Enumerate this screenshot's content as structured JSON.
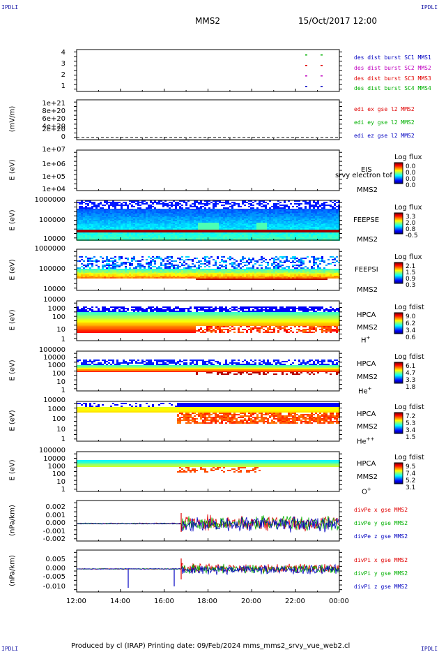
{
  "corner_label": "IPDLI",
  "header": {
    "spacecraft": "MMS2",
    "datetime": "15/Oct/2017 12:00"
  },
  "footer": {
    "text": "Produced by cl (IRAP)   Printing date: 09/Feb/2024   mms_mms2_srvy_vue_web2.cl"
  },
  "x_axis": {
    "ticks": [
      "12:00",
      "14:00",
      "16:00",
      "18:00",
      "20:00",
      "22:00",
      "00:00"
    ]
  },
  "colors": {
    "red": "#e00000",
    "green": "#00b000",
    "blue": "#0000c0",
    "magenta": "#c000c0"
  },
  "panels": [
    {
      "id": "burst",
      "ylabel": "",
      "yticks": [
        "4",
        "3",
        "2",
        "1"
      ],
      "legend": [
        {
          "text": "des dist burst SC1 MMS1",
          "color": "#0000c0"
        },
        {
          "text": "des dist burst SC2 MMS2",
          "color": "#c000c0"
        },
        {
          "text": "des dist burst SC3 MMS3",
          "color": "#e00000"
        },
        {
          "text": "des dist burst SC4 MMS4",
          "color": "#00b000"
        }
      ]
    },
    {
      "id": "edi",
      "ylabel": "(mV/m)",
      "yticks": [
        "1e+21",
        "8e+20",
        "6e+20",
        "4e+20",
        "2e+20",
        "0"
      ],
      "legend": [
        {
          "text": "edi ex gse l2 MMS2",
          "color": "#e00000"
        },
        {
          "text": "edi ey gse l2 MMS2",
          "color": "#00b000"
        },
        {
          "text": "edi ez gse l2 MMS2",
          "color": "#0000c0"
        }
      ]
    },
    {
      "id": "eis",
      "ylabel": "E (eV)",
      "yticks": [
        "1e+07",
        "1e+06",
        "1e+05",
        "1e+04"
      ],
      "side": [
        "EIS",
        "MMS2"
      ],
      "overlay": "srvy electron tof",
      "cb_title": "Log flux",
      "cb_values": [
        "0.0",
        "0.0",
        "0.0",
        "0.0"
      ]
    },
    {
      "id": "feepse",
      "ylabel": "E (eV)",
      "yticks": [
        "1000000",
        "100000",
        "10000"
      ],
      "side": [
        "FEEPSE",
        "MMS2"
      ],
      "cb_title": "Log flux",
      "cb_values": [
        "3.3",
        "2.0",
        "0.8",
        "-0.5"
      ]
    },
    {
      "id": "feepsi",
      "ylabel": "E (eV)",
      "yticks": [
        "1000000",
        "100000",
        "10000"
      ],
      "side": [
        "FEEPSI",
        "MMS2"
      ],
      "cb_title": "Log flux",
      "cb_values": [
        "2.1",
        "1.5",
        "0.9",
        "0.3"
      ]
    },
    {
      "id": "hpca-h",
      "ylabel": "E (eV)",
      "yticks": [
        "10000",
        "1000",
        "100",
        "10",
        "1"
      ],
      "side": [
        "HPCA",
        "MMS2",
        "H",
        "+"
      ],
      "cb_title": "Log fdist",
      "cb_values": [
        "9.0",
        "6.2",
        "3.4",
        "0.6"
      ]
    },
    {
      "id": "hpca-he",
      "ylabel": "E (eV)",
      "yticks": [
        "100000",
        "10000",
        "1000",
        "100",
        "10",
        "1"
      ],
      "side": [
        "HPCA",
        "MMS2",
        "He",
        "+"
      ],
      "cb_title": "Log fdist",
      "cb_values": [
        "6.1",
        "4.7",
        "3.3",
        "1.8"
      ]
    },
    {
      "id": "hpca-hepp",
      "ylabel": "E (eV)",
      "yticks": [
        "10000",
        "1000",
        "100",
        "10",
        "1"
      ],
      "side": [
        "HPCA",
        "MMS2",
        "He",
        "++"
      ],
      "cb_title": "Log fdist",
      "cb_values": [
        "7.2",
        "5.3",
        "3.4",
        "1.5"
      ]
    },
    {
      "id": "hpca-o",
      "ylabel": "E (eV)",
      "yticks": [
        "100000",
        "10000",
        "1000",
        "100",
        "10",
        "1"
      ],
      "side": [
        "HPCA",
        "MMS2",
        "O",
        "+"
      ],
      "cb_title": "Log fdist",
      "cb_values": [
        "9.5",
        "7.4",
        "5.2",
        "3.1"
      ]
    },
    {
      "id": "divpe",
      "ylabel": "(nPa/km)",
      "yticks": [
        "0.002",
        "0.001",
        "0.000",
        "-0.001",
        "-0.002"
      ],
      "legend": [
        {
          "text": "divPe x gse MMS2",
          "color": "#e00000"
        },
        {
          "text": "divPe y gse MMS2",
          "color": "#00b000"
        },
        {
          "text": "divPe z gse MMS2",
          "color": "#0000c0"
        }
      ]
    },
    {
      "id": "divpi",
      "ylabel": "(nPa/km)",
      "yticks": [
        "0.005",
        "0.000",
        "-0.005",
        "-0.010"
      ],
      "legend": [
        {
          "text": "divPi x gse MMS2",
          "color": "#e00000"
        },
        {
          "text": "divPi y gse MMS2",
          "color": "#00b000"
        },
        {
          "text": "divPi z gse MMS2",
          "color": "#0000c0"
        }
      ]
    }
  ],
  "chart_data": [
    {
      "type": "scatter",
      "title": "des dist burst",
      "ylim": [
        0.5,
        4.5
      ],
      "x": [
        "22:40",
        "23:20"
      ],
      "series": [
        {
          "name": "des dist burst SC1 MMS1",
          "y": [
            1,
            1
          ]
        },
        {
          "name": "des dist burst SC2 MMS2",
          "y": [
            2,
            2
          ]
        },
        {
          "name": "des dist burst SC3 MMS3",
          "y": [
            3,
            3
          ]
        },
        {
          "name": "des dist burst SC4 MMS4",
          "y": [
            4,
            4
          ]
        }
      ]
    },
    {
      "type": "line",
      "title": "edi",
      "ylabel": "(mV/m)",
      "ylim": [
        0,
        1e+21
      ],
      "series": [
        {
          "name": "edi ex gse l2 MMS2",
          "y": [
            0
          ]
        },
        {
          "name": "edi ey gse l2 MMS2",
          "y": [
            0
          ]
        },
        {
          "name": "edi ez gse l2 MMS2",
          "y": [
            0
          ]
        }
      ]
    },
    {
      "type": "heatmap",
      "title": "EIS",
      "ylabel": "E (eV)",
      "ylim": [
        10000.0,
        10000000.0
      ],
      "colorbar": [
        "0.0",
        "0.0",
        "0.0",
        "0.0"
      ],
      "values": []
    },
    {
      "type": "heatmap",
      "title": "FEEPSE",
      "ylabel": "E (eV)",
      "ylim": [
        10000.0,
        1000000.0
      ],
      "colorbar": [
        "3.3",
        "2.0",
        "0.8",
        "-0.5"
      ]
    },
    {
      "type": "heatmap",
      "title": "FEEPSI",
      "ylabel": "E (eV)",
      "ylim": [
        10000.0,
        1000000.0
      ],
      "colorbar": [
        "2.1",
        "1.5",
        "0.9",
        "0.3"
      ]
    },
    {
      "type": "heatmap",
      "title": "HPCA H+",
      "ylabel": "E (eV)",
      "ylim": [
        1,
        10000.0
      ],
      "colorbar": [
        "9.0",
        "6.2",
        "3.4",
        "0.6"
      ]
    },
    {
      "type": "heatmap",
      "title": "HPCA He+",
      "ylabel": "E (eV)",
      "ylim": [
        1,
        100000.0
      ],
      "colorbar": [
        "6.1",
        "4.7",
        "3.3",
        "1.8"
      ]
    },
    {
      "type": "heatmap",
      "title": "HPCA He++",
      "ylabel": "E (eV)",
      "ylim": [
        1,
        10000.0
      ],
      "colorbar": [
        "7.2",
        "5.3",
        "3.4",
        "1.5"
      ]
    },
    {
      "type": "heatmap",
      "title": "HPCA O+",
      "ylabel": "E (eV)",
      "ylim": [
        1,
        100000.0
      ],
      "colorbar": [
        "9.5",
        "7.4",
        "5.2",
        "3.1"
      ]
    },
    {
      "type": "line",
      "title": "divPe",
      "ylabel": "(nPa/km)",
      "ylim": [
        -0.002,
        0.0025
      ],
      "series": [
        {
          "name": "divPe x gse MMS2"
        },
        {
          "name": "divPe y gse MMS2"
        },
        {
          "name": "divPe z gse MMS2"
        }
      ]
    },
    {
      "type": "line",
      "title": "divPi",
      "ylabel": "(nPa/km)",
      "ylim": [
        -0.011,
        0.0065
      ],
      "series": [
        {
          "name": "divPi x gse MMS2"
        },
        {
          "name": "divPi y gse MMS2"
        },
        {
          "name": "divPi z gse MMS2"
        }
      ]
    }
  ]
}
